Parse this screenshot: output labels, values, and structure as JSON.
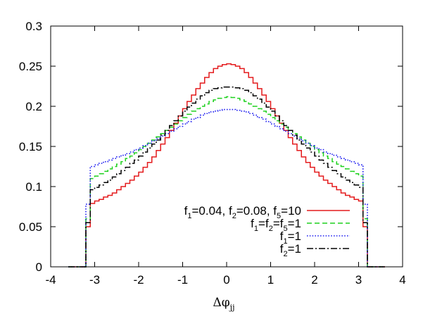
{
  "chart_data": {
    "type": "line",
    "title": "",
    "xlabel": "Δφ",
    "xlabel_subscript": "jj",
    "ylabel": "",
    "xlim": [
      -4,
      4
    ],
    "ylim": [
      0,
      0.3
    ],
    "xticks": [
      -4,
      -3,
      -2,
      -1,
      0,
      1,
      2,
      3,
      4
    ],
    "xtick_labels": [
      "-4",
      "-3",
      "-2",
      "-1",
      "0",
      "1",
      "2",
      "3",
      "4"
    ],
    "yticks": [
      0,
      0.05,
      0.1,
      0.15,
      0.2,
      0.25,
      0.3
    ],
    "ytick_labels": [
      "0",
      "0.05",
      "0.1",
      "0.15",
      "0.2",
      "0.25",
      "0.3"
    ],
    "grid": false,
    "legend_position": "bottom-right",
    "bin_edges": [
      -3.2,
      -3.1,
      -3.0,
      -2.9,
      -2.8,
      -2.7,
      -2.6,
      -2.5,
      -2.4,
      -2.3,
      -2.2,
      -2.1,
      -2.0,
      -1.9,
      -1.8,
      -1.7,
      -1.6,
      -1.5,
      -1.4,
      -1.3,
      -1.2,
      -1.1,
      -1.0,
      -0.9,
      -0.8,
      -0.7,
      -0.6,
      -0.5,
      -0.4,
      -0.3,
      -0.2,
      -0.1,
      0.0,
      0.1,
      0.2,
      0.3,
      0.4,
      0.5,
      0.6,
      0.7,
      0.8,
      0.9,
      1.0,
      1.1,
      1.2,
      1.3,
      1.4,
      1.5,
      1.6,
      1.7,
      1.8,
      1.9,
      2.0,
      2.1,
      2.2,
      2.3,
      2.4,
      2.5,
      2.6,
      2.7,
      2.8,
      2.9,
      3.0,
      3.1,
      3.2
    ],
    "series": [
      {
        "legend_label_parts": [
          [
            "f",
            "1",
            "=0.04, "
          ],
          [
            "f",
            "2",
            "=0.08, "
          ],
          [
            "f",
            "5",
            "=10"
          ]
        ],
        "color": "#e41a1c",
        "dash": "",
        "values": [
          0.05,
          0.079,
          0.082,
          0.084,
          0.087,
          0.089,
          0.092,
          0.096,
          0.1,
          0.104,
          0.108,
          0.113,
          0.118,
          0.124,
          0.13,
          0.137,
          0.145,
          0.153,
          0.161,
          0.17,
          0.179,
          0.188,
          0.197,
          0.206,
          0.214,
          0.222,
          0.229,
          0.236,
          0.242,
          0.247,
          0.25,
          0.252,
          0.253,
          0.252,
          0.25,
          0.247,
          0.242,
          0.236,
          0.229,
          0.222,
          0.214,
          0.206,
          0.197,
          0.188,
          0.179,
          0.17,
          0.161,
          0.153,
          0.145,
          0.137,
          0.13,
          0.124,
          0.118,
          0.113,
          0.108,
          0.104,
          0.1,
          0.096,
          0.092,
          0.089,
          0.087,
          0.084,
          0.082,
          0.05
        ]
      },
      {
        "legend_label_parts": [
          [
            "f",
            "1",
            "="
          ],
          [
            "f",
            "2",
            "="
          ],
          [
            "f",
            "5",
            "=1"
          ]
        ],
        "color": "#1fd11f",
        "dash": "7,4",
        "values": [
          0.06,
          0.11,
          0.113,
          0.116,
          0.119,
          0.122,
          0.125,
          0.128,
          0.131,
          0.135,
          0.138,
          0.142,
          0.146,
          0.15,
          0.154,
          0.158,
          0.162,
          0.166,
          0.17,
          0.174,
          0.178,
          0.182,
          0.186,
          0.19,
          0.194,
          0.197,
          0.2,
          0.203,
          0.206,
          0.208,
          0.21,
          0.211,
          0.212,
          0.211,
          0.21,
          0.208,
          0.206,
          0.203,
          0.2,
          0.197,
          0.194,
          0.19,
          0.186,
          0.182,
          0.178,
          0.174,
          0.17,
          0.166,
          0.162,
          0.158,
          0.154,
          0.15,
          0.146,
          0.142,
          0.138,
          0.135,
          0.131,
          0.128,
          0.125,
          0.122,
          0.119,
          0.116,
          0.113,
          0.06
        ]
      },
      {
        "legend_label_parts": [
          [
            "f",
            "1",
            "=1"
          ]
        ],
        "color": "#2020f0",
        "dash": "1.6,2.2",
        "values": [
          0.078,
          0.125,
          0.127,
          0.129,
          0.131,
          0.133,
          0.135,
          0.137,
          0.139,
          0.141,
          0.143,
          0.146,
          0.148,
          0.151,
          0.154,
          0.157,
          0.16,
          0.163,
          0.166,
          0.169,
          0.172,
          0.175,
          0.178,
          0.181,
          0.184,
          0.186,
          0.189,
          0.191,
          0.193,
          0.194,
          0.195,
          0.196,
          0.196,
          0.196,
          0.195,
          0.194,
          0.193,
          0.191,
          0.189,
          0.186,
          0.184,
          0.181,
          0.178,
          0.175,
          0.172,
          0.169,
          0.166,
          0.163,
          0.16,
          0.157,
          0.154,
          0.151,
          0.148,
          0.146,
          0.143,
          0.141,
          0.139,
          0.137,
          0.135,
          0.133,
          0.131,
          0.129,
          0.127,
          0.078
        ]
      },
      {
        "legend_label_parts": [
          [
            "f",
            "2",
            "=1"
          ]
        ],
        "color": "#000000",
        "dash": "9,3,2,3",
        "values": [
          0.055,
          0.096,
          0.099,
          0.102,
          0.105,
          0.108,
          0.112,
          0.116,
          0.12,
          0.124,
          0.129,
          0.133,
          0.138,
          0.143,
          0.148,
          0.153,
          0.158,
          0.164,
          0.17,
          0.176,
          0.182,
          0.188,
          0.194,
          0.199,
          0.204,
          0.209,
          0.213,
          0.217,
          0.22,
          0.222,
          0.223,
          0.224,
          0.224,
          0.224,
          0.223,
          0.222,
          0.22,
          0.217,
          0.213,
          0.209,
          0.204,
          0.199,
          0.194,
          0.188,
          0.182,
          0.176,
          0.17,
          0.164,
          0.158,
          0.153,
          0.148,
          0.143,
          0.138,
          0.133,
          0.129,
          0.124,
          0.12,
          0.116,
          0.112,
          0.108,
          0.105,
          0.102,
          0.099,
          0.055
        ]
      }
    ]
  }
}
